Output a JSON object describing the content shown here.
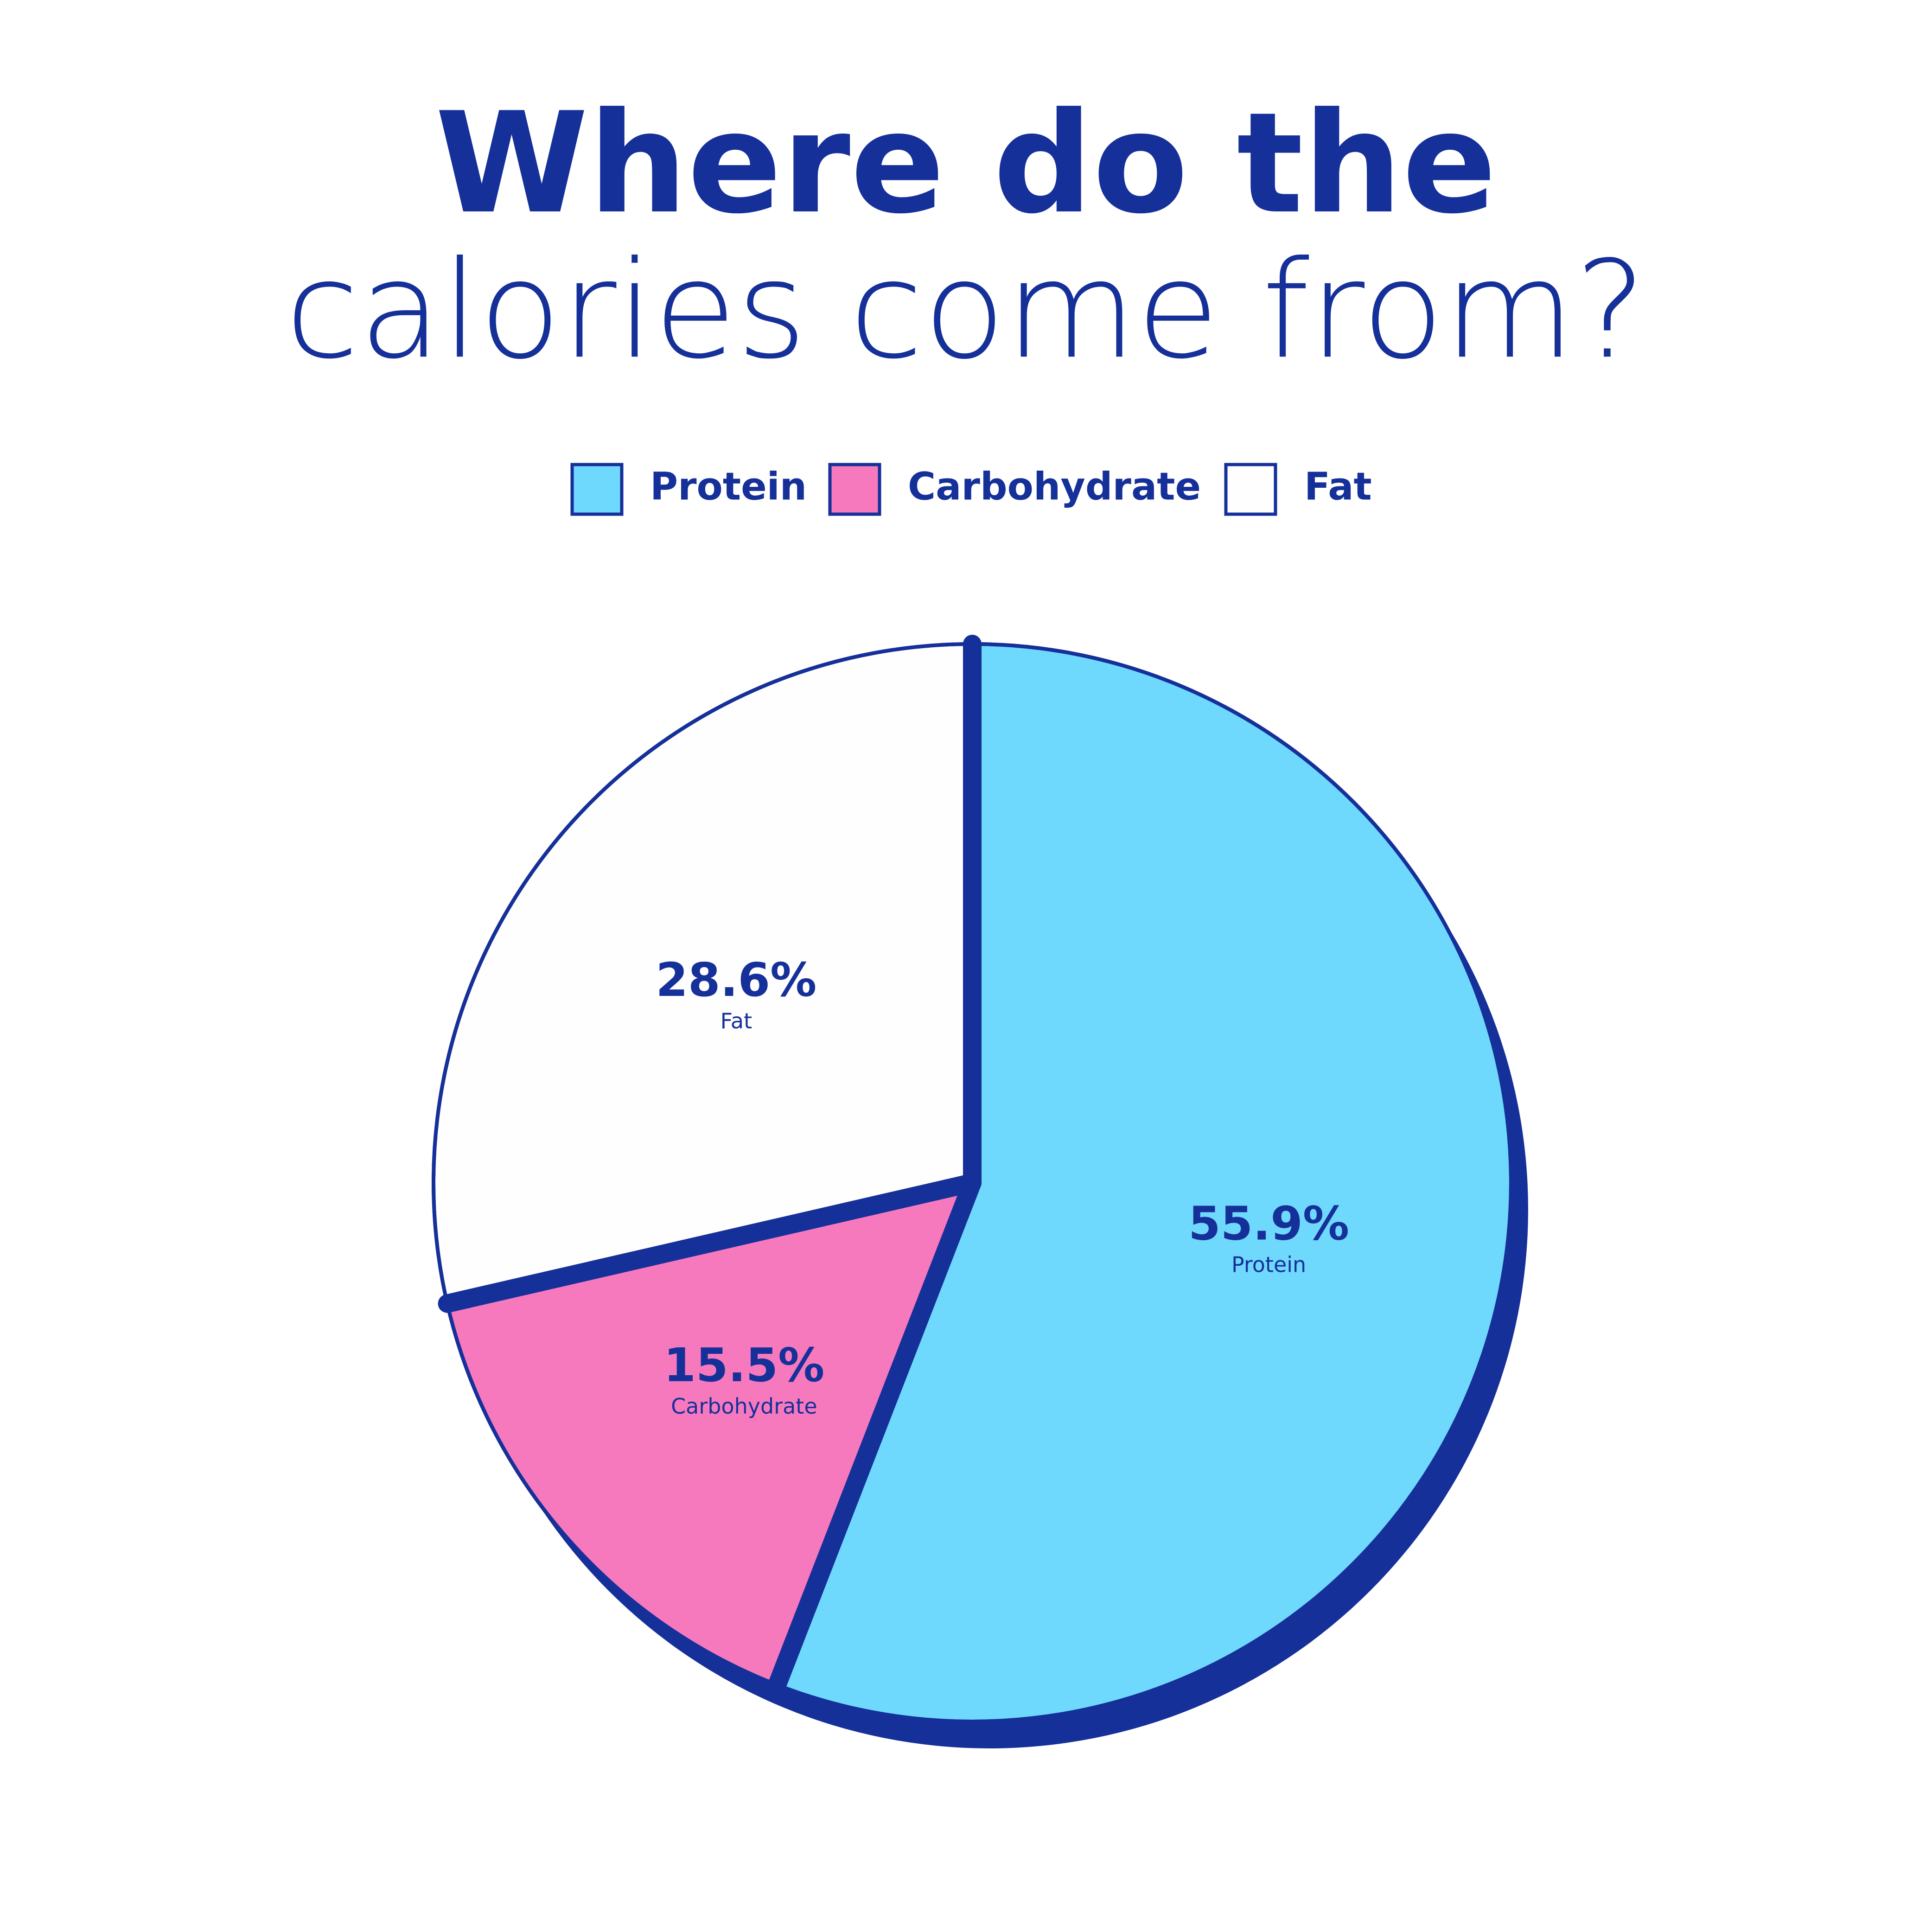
{
  "chart_data": {
    "type": "pie",
    "title_lines": [
      "Where do the",
      "calories come from?"
    ],
    "categories": [
      "Protein",
      "Carbohydrate",
      "Fat"
    ],
    "values": [
      55.9,
      15.5,
      28.6
    ],
    "value_labels": [
      "55.9%",
      "15.5%",
      "28.6%"
    ],
    "colors": [
      "#6fd8fd",
      "#f779bd",
      "#fefefe"
    ],
    "edge_color": "#16309a",
    "legend": "top"
  }
}
